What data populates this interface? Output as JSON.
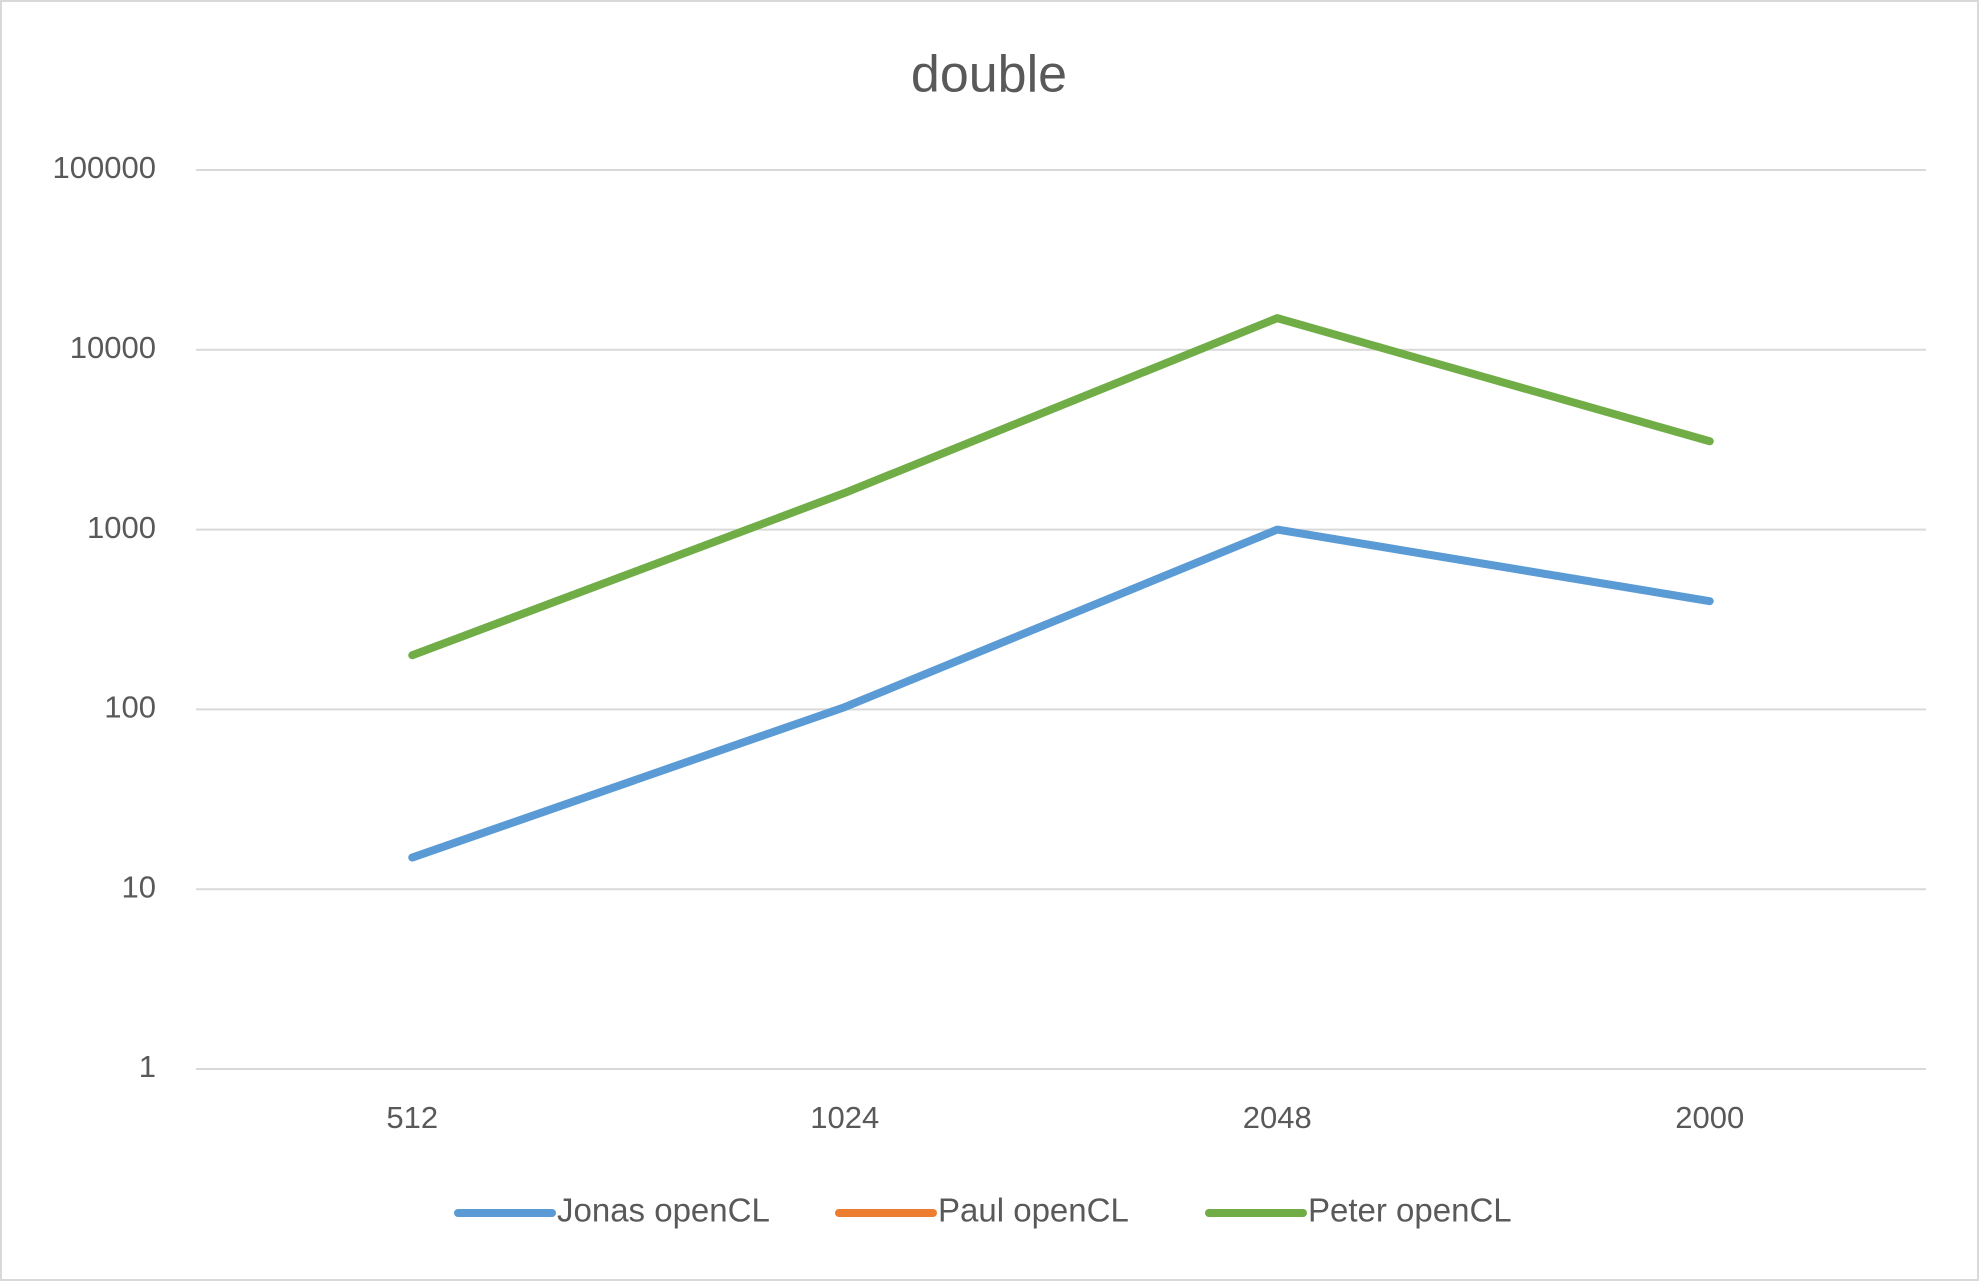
{
  "chart_data": {
    "type": "line",
    "title": "double",
    "categories": [
      "512",
      "1024",
      "2048",
      "2000"
    ],
    "series": [
      {
        "name": "Jonas openCL",
        "color": "#5b9bd5",
        "values": [
          15,
          103,
          1000,
          400
        ]
      },
      {
        "name": "Paul openCL",
        "color": "#ed7d31",
        "values": [
          null,
          null,
          null,
          null
        ]
      },
      {
        "name": "Peter openCL",
        "color": "#70ad47",
        "values": [
          200,
          1600,
          15000,
          3100
        ]
      }
    ],
    "yscale": "log",
    "ylim": [
      1,
      100000
    ],
    "yticks": [
      1,
      10,
      100,
      1000,
      10000,
      100000
    ],
    "grid": true,
    "legend": "bottom"
  }
}
